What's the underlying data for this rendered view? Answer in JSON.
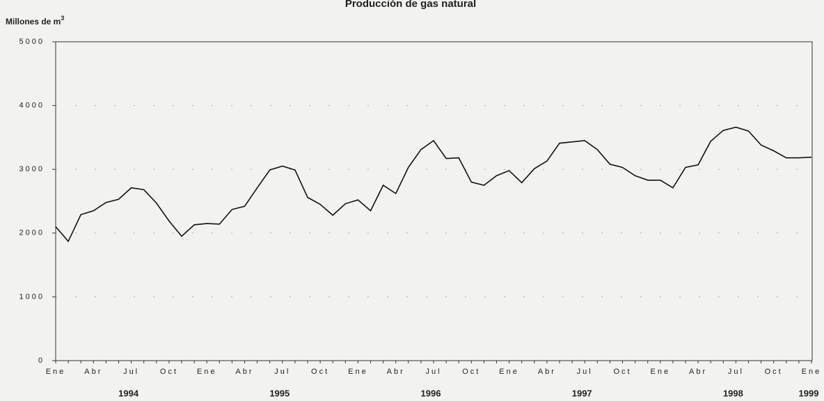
{
  "chart_data": {
    "type": "line",
    "title": "Producción de gas natural",
    "y_label": "Millones de m",
    "y_label_sup": "3",
    "categories": [
      "Ene",
      null,
      null,
      "Abr",
      null,
      null,
      "Jul",
      null,
      null,
      "Oct",
      null,
      null,
      "Ene",
      null,
      null,
      "Abr",
      null,
      null,
      "Jul",
      null,
      null,
      "Oct",
      null,
      null,
      "Ene",
      null,
      null,
      "Abr",
      null,
      null,
      "Jul",
      null,
      null,
      "Oct",
      null,
      null,
      "Ene",
      null,
      null,
      "Abr",
      null,
      null,
      "Jul",
      null,
      null,
      "Oct",
      null,
      null,
      "Ene",
      null,
      null,
      "Abr",
      null,
      null,
      "Jul",
      null,
      null,
      "Oct",
      null,
      null,
      "Ene"
    ],
    "years": [
      null,
      null,
      null,
      null,
      null,
      null,
      "1994",
      null,
      null,
      null,
      null,
      null,
      null,
      null,
      null,
      null,
      null,
      null,
      "1995",
      null,
      null,
      null,
      null,
      null,
      null,
      null,
      null,
      null,
      null,
      null,
      "1996",
      null,
      null,
      null,
      null,
      null,
      null,
      null,
      null,
      null,
      null,
      null,
      "1997",
      null,
      null,
      null,
      null,
      null,
      null,
      null,
      null,
      null,
      null,
      null,
      "1998",
      null,
      null,
      null,
      null,
      null,
      "1999"
    ],
    "series": [
      {
        "name": "Producción",
        "color": "#111111",
        "values": [
          2100,
          1870,
          2290,
          2350,
          2480,
          2530,
          2710,
          2680,
          2470,
          2190,
          1950,
          2130,
          2150,
          2140,
          2370,
          2420,
          2710,
          2990,
          3050,
          2990,
          2560,
          2450,
          2280,
          2460,
          2520,
          2350,
          2750,
          2620,
          3030,
          3310,
          3450,
          3170,
          3180,
          2800,
          2750,
          2900,
          2980,
          2790,
          3010,
          3130,
          3410,
          3430,
          3450,
          3310,
          3080,
          3030,
          2900,
          2830,
          2830,
          2710,
          3030,
          3070,
          3440,
          3610,
          3660,
          3600,
          3380,
          3290,
          3180,
          3180,
          3190
        ]
      }
    ],
    "ylim": [
      0,
      5000
    ],
    "yticks": [
      0,
      1000,
      2000,
      3000,
      4000,
      5000
    ],
    "grid": true
  }
}
